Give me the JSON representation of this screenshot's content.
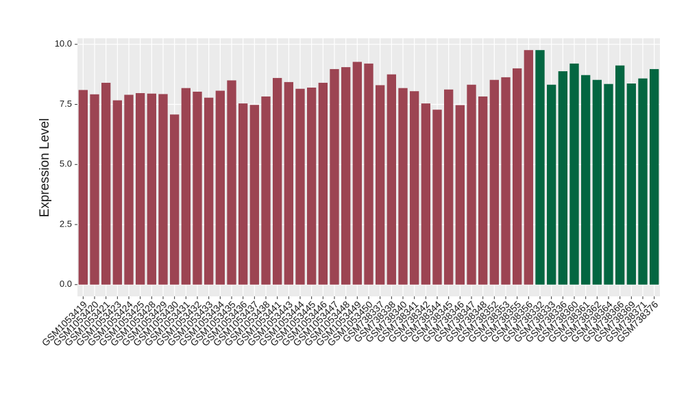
{
  "chart_data": {
    "type": "bar",
    "y_label": "Expression Level",
    "categories": [
      "GSM1053419",
      "GSM1053420",
      "GSM1053421",
      "GSM1053423",
      "GSM1053424",
      "GSM1053425",
      "GSM1053428",
      "GSM1053429",
      "GSM1053430",
      "GSM1053431",
      "GSM1053432",
      "GSM1053433",
      "GSM1053434",
      "GSM1053435",
      "GSM1053436",
      "GSM1053437",
      "GSM1053438",
      "GSM1053441",
      "GSM1053443",
      "GSM1053444",
      "GSM1053445",
      "GSM1053446",
      "GSM1053447",
      "GSM1053448",
      "GSM1053449",
      "GSM1053450",
      "GSM738337",
      "GSM738338",
      "GSM738340",
      "GSM738341",
      "GSM738342",
      "GSM738344",
      "GSM738345",
      "GSM738346",
      "GSM738347",
      "GSM738348",
      "GSM738352",
      "GSM738353",
      "GSM738355",
      "GSM738356",
      "GSM738332",
      "GSM738333",
      "GSM738336",
      "GSM738360",
      "GSM738361",
      "GSM738362",
      "GSM738364",
      "GSM738366",
      "GSM738369",
      "GSM738371",
      "GSM738376"
    ],
    "values": [
      8.1,
      7.92,
      8.4,
      7.67,
      7.9,
      7.97,
      7.95,
      7.93,
      7.08,
      8.18,
      8.03,
      7.78,
      8.07,
      8.5,
      7.54,
      7.48,
      7.83,
      8.6,
      8.43,
      8.15,
      8.2,
      8.4,
      8.97,
      9.05,
      9.27,
      9.2,
      8.3,
      8.75,
      8.18,
      8.05,
      7.54,
      7.28,
      8.12,
      7.47,
      8.32,
      7.83,
      8.52,
      8.63,
      9.0,
      9.76,
      9.76,
      8.32,
      8.88,
      9.2,
      8.72,
      8.52,
      8.35,
      9.12,
      8.37,
      8.58,
      8.97
    ],
    "colors": [
      "#9c4452",
      "#9c4452",
      "#9c4452",
      "#9c4452",
      "#9c4452",
      "#9c4452",
      "#9c4452",
      "#9c4452",
      "#9c4452",
      "#9c4452",
      "#9c4452",
      "#9c4452",
      "#9c4452",
      "#9c4452",
      "#9c4452",
      "#9c4452",
      "#9c4452",
      "#9c4452",
      "#9c4452",
      "#9c4452",
      "#9c4452",
      "#9c4452",
      "#9c4452",
      "#9c4452",
      "#9c4452",
      "#9c4452",
      "#9c4452",
      "#9c4452",
      "#9c4452",
      "#9c4452",
      "#9c4452",
      "#9c4452",
      "#9c4452",
      "#9c4452",
      "#9c4452",
      "#9c4452",
      "#9c4452",
      "#9c4452",
      "#9c4452",
      "#9c4452",
      "#036641",
      "#036641",
      "#036641",
      "#036641",
      "#036641",
      "#036641",
      "#036641",
      "#036641",
      "#036641",
      "#036641",
      "#036641"
    ],
    "ylim": [
      -0.49,
      10.25
    ],
    "yticks": [
      {
        "value": 0,
        "label": "0.0"
      },
      {
        "value": 2.5,
        "label": "2.5"
      },
      {
        "value": 5,
        "label": "5.0"
      },
      {
        "value": 7.5,
        "label": "7.5"
      },
      {
        "value": 10,
        "label": "10.0"
      }
    ],
    "grid": true
  }
}
